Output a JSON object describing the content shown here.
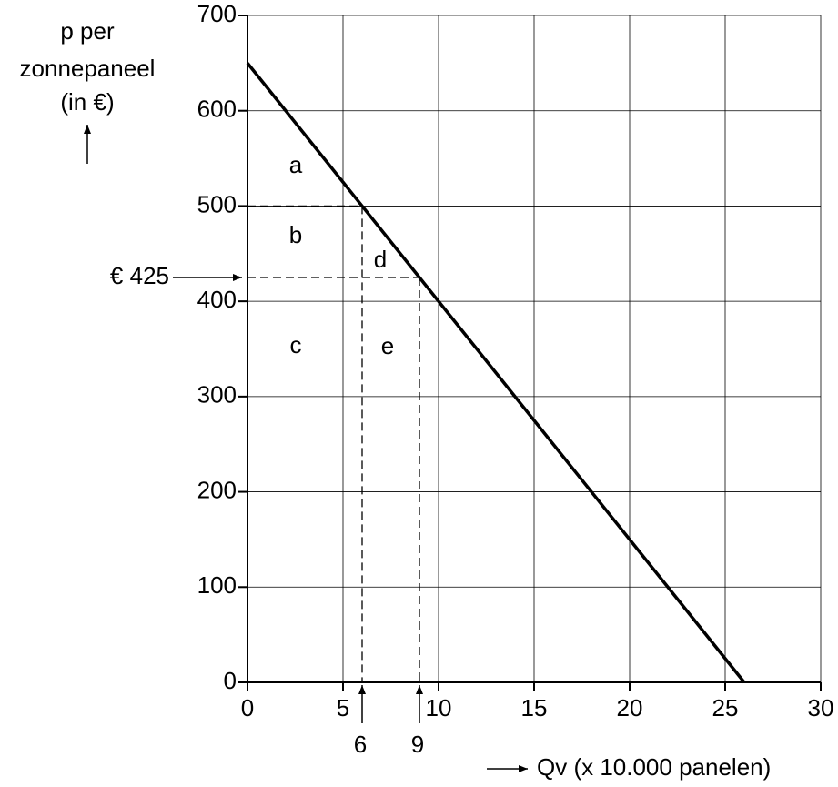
{
  "chart_data": {
    "type": "line",
    "ylabel": [
      "p per",
      "zonnepaneel",
      "(in €)"
    ],
    "xlabel": "Qv (x 10.000 panelen)",
    "x": [
      0,
      26
    ],
    "values": [
      650,
      0
    ],
    "color": "#000000",
    "xlim": [
      0,
      30
    ],
    "ylim": [
      0,
      700
    ],
    "xticks": [
      0,
      5,
      10,
      15,
      20,
      25,
      30
    ],
    "yticks": [
      0,
      100,
      200,
      300,
      400,
      500,
      600,
      700
    ],
    "grid": true,
    "reference_points": [
      {
        "x": 6,
        "y": 500
      },
      {
        "x": 9,
        "y": 425,
        "y_label": "€ 425"
      }
    ],
    "region_labels": [
      "a",
      "b",
      "c",
      "d",
      "e"
    ]
  }
}
